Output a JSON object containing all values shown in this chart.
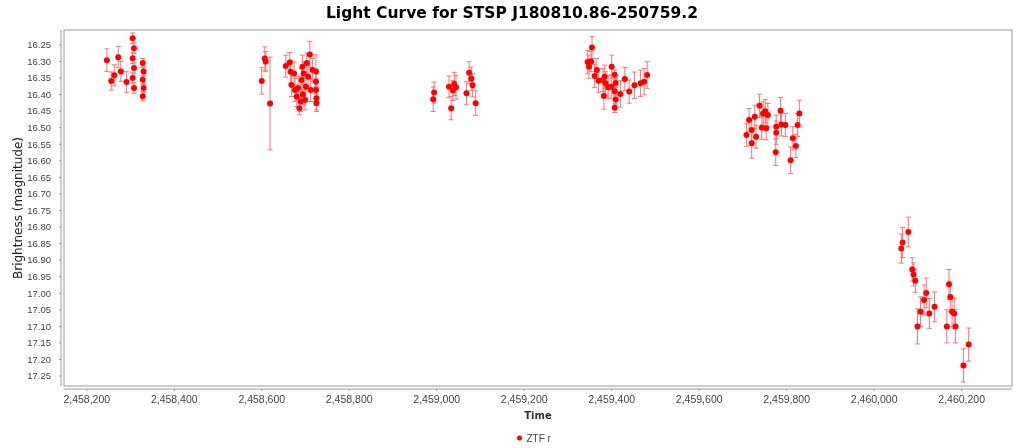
{
  "chart_data": {
    "type": "scatter",
    "title": "Light Curve for STSP J180810.86-250759.2",
    "xlabel": "Time",
    "ylabel": "Brightness (magnitude)",
    "xlim": [
      2458148,
      2460315
    ],
    "ylim": [
      17.28,
      16.205
    ],
    "xticks": [
      {
        "value": 2458200,
        "label": "2,458,200"
      },
      {
        "value": 2458400,
        "label": "2,458,400"
      },
      {
        "value": 2458600,
        "label": "2,458,600"
      },
      {
        "value": 2458800,
        "label": "2,458,800"
      },
      {
        "value": 2459000,
        "label": "2,459,000"
      },
      {
        "value": 2459200,
        "label": "2,459,200"
      },
      {
        "value": 2459400,
        "label": "2,459,400"
      },
      {
        "value": 2459600,
        "label": "2,459,600"
      },
      {
        "value": 2459800,
        "label": "2,459,800"
      },
      {
        "value": 2460000,
        "label": "2,460,000"
      },
      {
        "value": 2460200,
        "label": "2,460,200"
      }
    ],
    "yticks": [
      16.25,
      {
        "value": 16.3,
        "label": "16.30"
      },
      16.35,
      {
        "value": 16.4,
        "label": "16.40"
      },
      16.45,
      {
        "value": 16.5,
        "label": "16.50"
      },
      16.55,
      {
        "value": 16.6,
        "label": "16.60"
      },
      16.65,
      {
        "value": 16.7,
        "label": "16.70"
      },
      16.75,
      {
        "value": 16.8,
        "label": "16.80"
      },
      16.85,
      {
        "value": 16.9,
        "label": "16.90"
      },
      16.95,
      {
        "value": 17,
        "label": "17.00"
      },
      17.05,
      {
        "value": 17.1,
        "label": "17.10"
      },
      17.15,
      {
        "value": 17.2,
        "label": "17.20"
      },
      17.25
    ],
    "legend": "bottom",
    "marker": "circle",
    "x": [
      2458246,
      2458256,
      2458263,
      2458272,
      2458278,
      2458291,
      2458305,
      2458308,
      2458305,
      2458308,
      2458305,
      2458308,
      2458328,
      2458330,
      2458328,
      2458330,
      2458328,
      2458600,
      2458607,
      2458609,
      2458619,
      2458655,
      2458664,
      2458666,
      2458668,
      2458674,
      2458676,
      2458680,
      2458683,
      2458686,
      2458689,
      2458691,
      2458693,
      2458694,
      2458696,
      2458699,
      2458701,
      2458703,
      2458706,
      2458710,
      2458712,
      2458716,
      2458724,
      2458724,
      2458724,
      2458725,
      2458725,
      2458992,
      2458994,
      2459028,
      2459033,
      2459037,
      2459040,
      2459044,
      2459068,
      2459074,
      2459079,
      2459082,
      2459089,
      2459345,
      2459348,
      2459353,
      2459355,
      2459361,
      2459366,
      2459370,
      2459380,
      2459382,
      2459384,
      2459386,
      2459392,
      2459399,
      2459400,
      2459407,
      2459409,
      2459407,
      2459409,
      2459407,
      2459420,
      2459430,
      2459440,
      2459452,
      2459466,
      2459474,
      2459481,
      2459708,
      2459714,
      2459720,
      2459720,
      2459727,
      2459730,
      2459738,
      2459743,
      2459746,
      2459751,
      2459753,
      2459757,
      2459775,
      2459776,
      2459776,
      2459786,
      2459788,
      2459797,
      2459809,
      2459814,
      2459821,
      2459825,
      2459829,
      2460062,
      2460065,
      2460078,
      2460087,
      2460090,
      2460094,
      2460099,
      2460106,
      2460114,
      2460119,
      2460126,
      2460138,
      2460166,
      2460171,
      2460174,
      2460178,
      2460183,
      2460186,
      2460204,
      2460216
    ],
    "series": [
      {
        "name": "ZTF r",
        "color": "#ff0000",
        "values": [
          16.296,
          16.359,
          16.342,
          16.287,
          16.33,
          16.362,
          16.23,
          16.26,
          16.29,
          16.32,
          16.35,
          16.38,
          16.305,
          16.33,
          16.355,
          16.38,
          16.405,
          16.359,
          16.291,
          16.3,
          16.427,
          16.314,
          16.303,
          16.331,
          16.371,
          16.336,
          16.386,
          16.406,
          16.38,
          16.441,
          16.421,
          16.356,
          16.316,
          16.4,
          16.336,
          16.416,
          16.376,
          16.305,
          16.346,
          16.279,
          16.386,
          16.326,
          16.33,
          16.361,
          16.386,
          16.411,
          16.426,
          16.414,
          16.394,
          16.376,
          16.441,
          16.388,
          16.368,
          16.378,
          16.396,
          16.334,
          16.352,
          16.372,
          16.426,
          16.302,
          16.316,
          16.3,
          16.258,
          16.344,
          16.326,
          16.358,
          16.356,
          16.404,
          16.346,
          16.366,
          16.378,
          16.376,
          16.316,
          16.34,
          16.365,
          16.39,
          16.415,
          16.44,
          16.398,
          16.353,
          16.391,
          16.372,
          16.366,
          16.361,
          16.341,
          16.522,
          16.477,
          16.547,
          16.507,
          16.467,
          16.527,
          16.434,
          16.5,
          16.457,
          16.45,
          16.502,
          16.462,
          16.574,
          16.515,
          16.497,
          16.449,
          16.49,
          16.492,
          16.598,
          16.532,
          16.555,
          16.492,
          16.457,
          16.865,
          16.847,
          16.815,
          16.928,
          16.943,
          16.962,
          17.1,
          17.056,
          17.02,
          16.999,
          17.061,
          17.041,
          17.1,
          16.973,
          17.011,
          17.056,
          17.061,
          17.1,
          17.218,
          17.155
        ],
        "errors": [
          0.034,
          0.027,
          0.032,
          0.032,
          0.03,
          0.031,
          0.016,
          0.016,
          0.016,
          0.016,
          0.016,
          0.016,
          0.014,
          0.014,
          0.014,
          0.014,
          0.014,
          0.04,
          0.035,
          0.03,
          0.14,
          0.033,
          0.03,
          0.035,
          0.035,
          0.035,
          0.035,
          0.03,
          0.035,
          0.02,
          0.03,
          0.035,
          0.035,
          0.03,
          0.035,
          0.03,
          0.035,
          0.03,
          0.035,
          0.04,
          0.035,
          0.035,
          0.05,
          0.035,
          0.035,
          0.035,
          0.025,
          0.037,
          0.032,
          0.032,
          0.035,
          0.03,
          0.035,
          0.035,
          0.035,
          0.033,
          0.035,
          0.035,
          0.037,
          0.035,
          0.035,
          0.03,
          0.033,
          0.035,
          0.035,
          0.035,
          0.035,
          0.04,
          0.035,
          0.035,
          0.035,
          0.035,
          0.035,
          0.014,
          0.014,
          0.014,
          0.014,
          0.014,
          0.04,
          0.035,
          0.035,
          0.04,
          0.04,
          0.04,
          0.04,
          0.034,
          0.035,
          0.045,
          0.035,
          0.035,
          0.035,
          0.035,
          0.035,
          0.035,
          0.035,
          0.035,
          0.035,
          0.04,
          0.035,
          0.035,
          0.04,
          0.035,
          0.035,
          0.04,
          0.035,
          0.035,
          0.035,
          0.04,
          0.044,
          0.045,
          0.045,
          0.035,
          0.035,
          0.035,
          0.053,
          0.045,
          0.045,
          0.045,
          0.045,
          0.045,
          0.05,
          0.045,
          0.045,
          0.045,
          0.045,
          0.05,
          0.05,
          0.05
        ]
      }
    ]
  }
}
